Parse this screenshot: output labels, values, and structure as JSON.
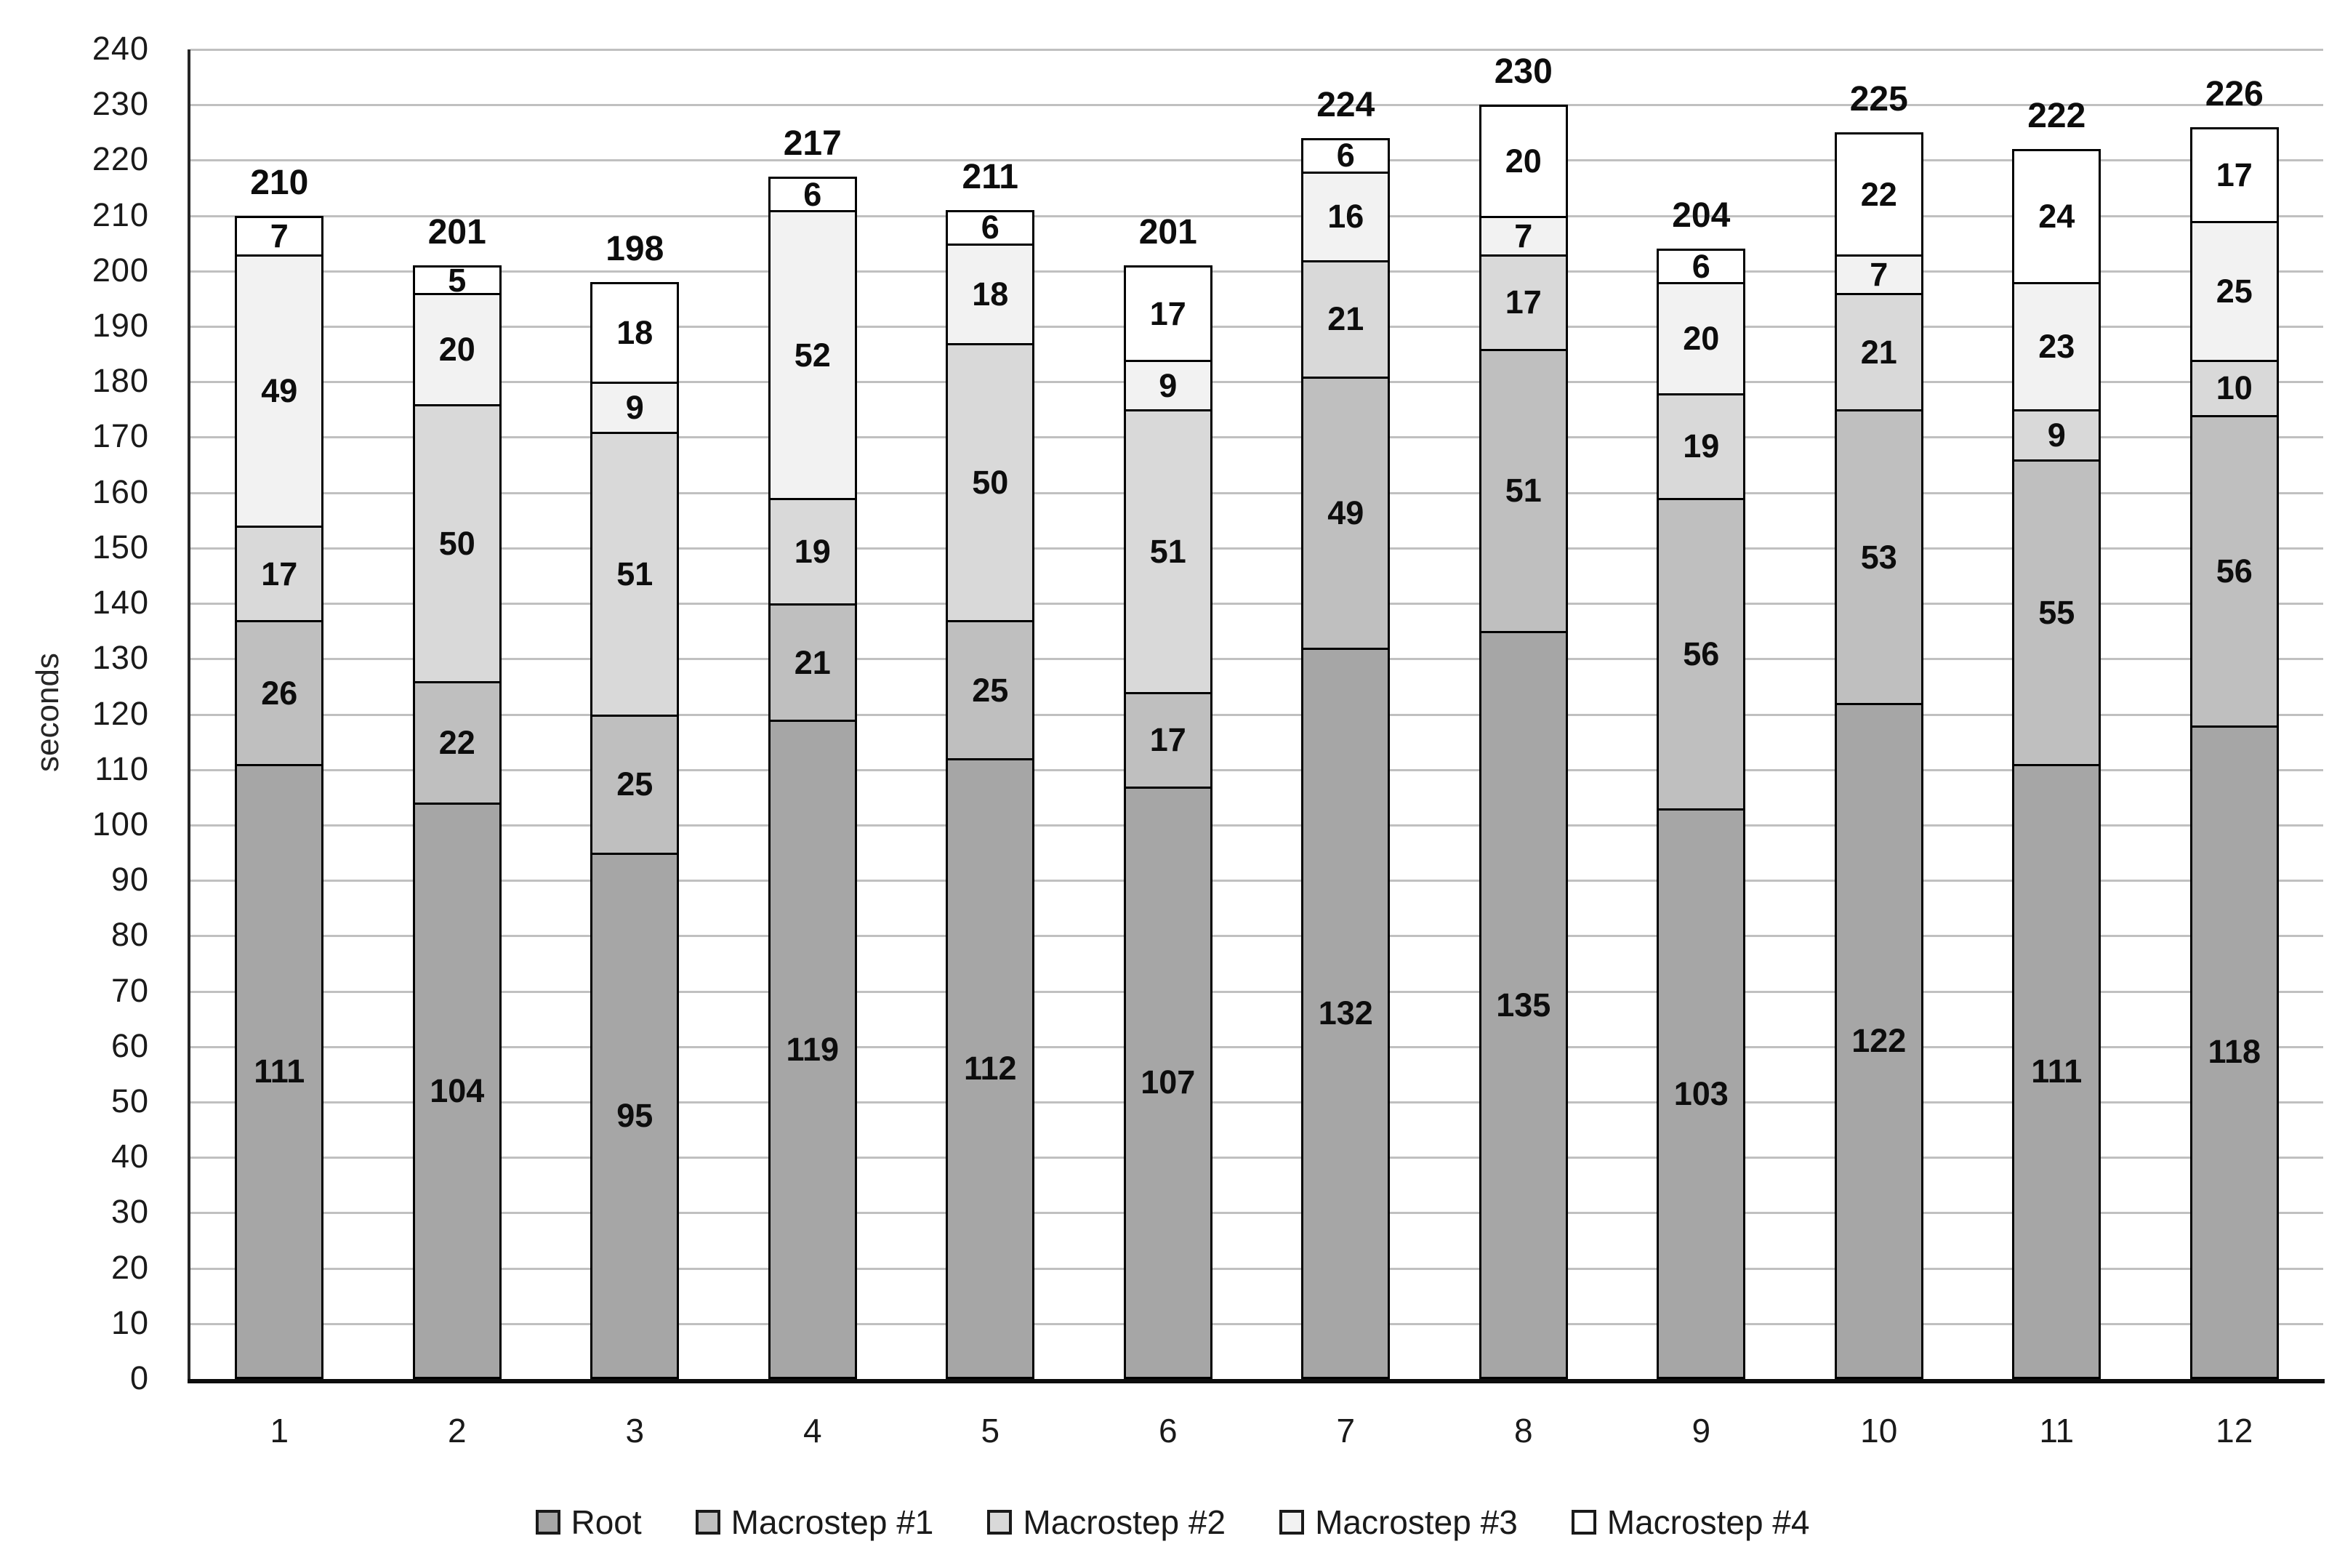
{
  "chart_data": {
    "type": "bar",
    "stacked": true,
    "title": "",
    "xlabel": "",
    "ylabel": "seconds",
    "ylim": [
      0,
      240
    ],
    "ytick_step": 10,
    "yticks": [
      0,
      10,
      20,
      30,
      40,
      50,
      60,
      70,
      80,
      90,
      100,
      110,
      120,
      130,
      140,
      150,
      160,
      170,
      180,
      190,
      200,
      210,
      220,
      230,
      240
    ],
    "grid": true,
    "legend_position": "bottom",
    "categories": [
      "1",
      "2",
      "3",
      "4",
      "5",
      "6",
      "7",
      "8",
      "9",
      "10",
      "11",
      "12"
    ],
    "series": [
      {
        "name": "Root",
        "color": "#a6a6a6",
        "values": [
          111,
          104,
          95,
          119,
          112,
          107,
          132,
          135,
          103,
          122,
          111,
          118
        ]
      },
      {
        "name": "Macrostep #1",
        "color": "#bfbfbf",
        "values": [
          26,
          22,
          25,
          21,
          25,
          17,
          49,
          51,
          56,
          53,
          55,
          56
        ]
      },
      {
        "name": "Macrostep #2",
        "color": "#d9d9d9",
        "values": [
          17,
          50,
          51,
          19,
          50,
          51,
          21,
          17,
          19,
          21,
          9,
          10
        ]
      },
      {
        "name": "Macrostep #3",
        "color": "#f2f2f2",
        "values": [
          49,
          20,
          9,
          52,
          18,
          9,
          16,
          7,
          20,
          7,
          23,
          25
        ]
      },
      {
        "name": "Macrostep #4",
        "color": "#ffffff",
        "values": [
          7,
          5,
          18,
          6,
          6,
          17,
          6,
          20,
          6,
          22,
          24,
          17
        ]
      }
    ],
    "totals": [
      210,
      201,
      198,
      217,
      211,
      201,
      224,
      230,
      204,
      225,
      222,
      226
    ]
  },
  "colors": {
    "grid": "#c0c0c0",
    "axis": "#0d0d0d",
    "segment_border": "#000000",
    "label_text": "#0d0d0d",
    "tick_text": "#1a1a1a"
  }
}
